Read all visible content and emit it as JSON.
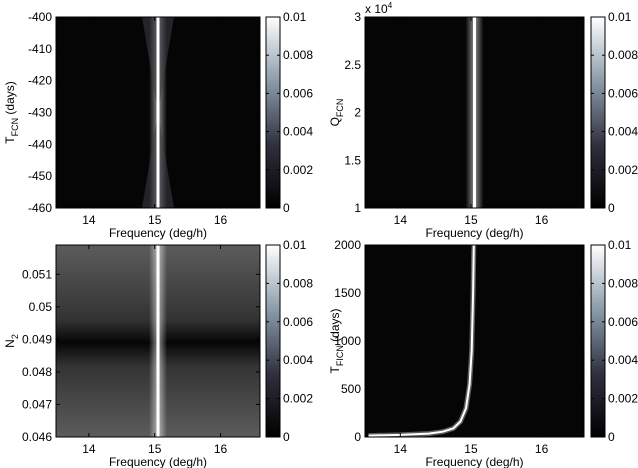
{
  "chart_data": [
    {
      "type": "heatmap",
      "xlabel": "Frequency (deg/h)",
      "ylabel": {
        "main": "T",
        "sub": "FCN",
        "rest": " (days)"
      },
      "xlim": [
        13.5,
        16.6
      ],
      "ylim": [
        -460,
        -400
      ],
      "xticks": [
        14,
        15,
        16
      ],
      "yticks": [
        -460,
        -450,
        -440,
        -430,
        -420,
        -410,
        -400
      ],
      "colorbar": {
        "range": [
          0,
          0.01
        ],
        "ticks": [
          "0",
          "0.002",
          "0.004",
          "0.006",
          "0.008",
          "0.01"
        ]
      },
      "ridge": {
        "shape": "vertical",
        "x": 15.05,
        "pinch_y": -430
      },
      "background_gray": 0.02
    },
    {
      "type": "heatmap",
      "xlabel": "Frequency (deg/h)",
      "ylabel": {
        "main": "Q",
        "sub": "FCN",
        "rest": ""
      },
      "y_multiplier": "x 10",
      "y_exponent": "4",
      "xlim": [
        13.5,
        16.6
      ],
      "ylim": [
        1,
        3
      ],
      "xticks": [
        14,
        15,
        16
      ],
      "yticks": [
        1,
        1.5,
        2,
        2.5,
        3
      ],
      "colorbar": {
        "range": [
          0,
          0.01
        ],
        "ticks": [
          "0",
          "0.002",
          "0.004",
          "0.006",
          "0.008",
          "0.01"
        ]
      },
      "ridge": {
        "shape": "vertical",
        "x": 15.05
      },
      "background_gray": 0.02
    },
    {
      "type": "heatmap",
      "xlabel": "Frequency (deg/h)",
      "ylabel": {
        "main": "N",
        "sub": "2",
        "rest": ""
      },
      "xlim": [
        13.5,
        16.6
      ],
      "ylim": [
        0.046,
        0.0519
      ],
      "xticks": [
        14,
        15,
        16
      ],
      "yticks": [
        0.046,
        0.047,
        0.048,
        0.049,
        0.05,
        0.051
      ],
      "colorbar": {
        "range": [
          0,
          0.01
        ],
        "ticks": [
          "0",
          "0.002",
          "0.004",
          "0.006",
          "0.008",
          "0.01"
        ]
      },
      "ridge": {
        "shape": "vertical",
        "x": 15.05
      },
      "background_gray": 0.3,
      "dark_band_y": 0.0489
    },
    {
      "type": "heatmap",
      "xlabel": "Frequency (deg/h)",
      "ylabel": {
        "main": "T",
        "sub": "FICN",
        "rest": " (days)"
      },
      "xlim": [
        13.5,
        16.6
      ],
      "ylim": [
        0,
        2000
      ],
      "xticks": [
        14,
        15,
        16
      ],
      "yticks": [
        0,
        500,
        1000,
        1500,
        2000
      ],
      "colorbar": {
        "range": [
          0,
          0.01
        ],
        "ticks": [
          "0",
          "0.002",
          "0.004",
          "0.006",
          "0.008",
          "0.01"
        ]
      },
      "ridge": {
        "shape": "curve",
        "points": [
          [
            13.55,
            15
          ],
          [
            14,
            22
          ],
          [
            14.4,
            35
          ],
          [
            14.6,
            55
          ],
          [
            14.75,
            90
          ],
          [
            14.85,
            160
          ],
          [
            14.93,
            300
          ],
          [
            14.98,
            550
          ],
          [
            15.01,
            900
          ],
          [
            15.03,
            1500
          ],
          [
            15.04,
            2000
          ]
        ]
      },
      "background_gray": 0.02
    }
  ]
}
